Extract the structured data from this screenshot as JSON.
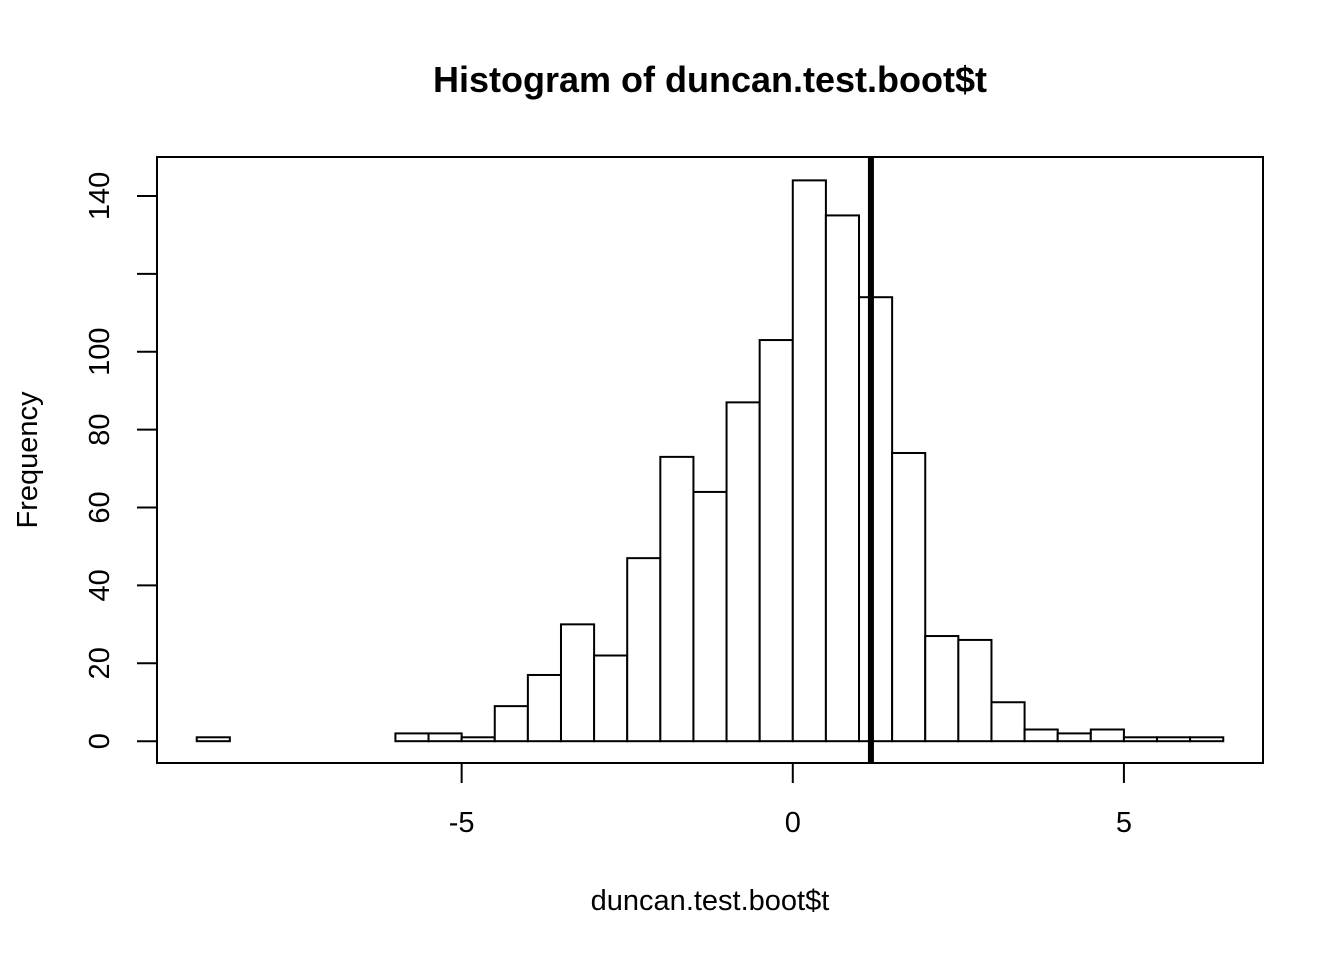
{
  "chart_data": {
    "type": "bar",
    "title": "Histogram of duncan.test.boot$t",
    "xlabel": "duncan.test.boot$t",
    "ylabel": "Frequency",
    "bin_width": 0.5,
    "bins_start": [
      -9,
      -8.5,
      -8,
      -7.5,
      -7,
      -6.5,
      -6,
      -5.5,
      -5,
      -4.5,
      -4,
      -3.5,
      -3,
      -2.5,
      -2,
      -1.5,
      -1,
      -0.5,
      0,
      0.5,
      1,
      1.5,
      2,
      2.5,
      3,
      3.5,
      4,
      4.5,
      5,
      5.5,
      6
    ],
    "values": [
      1,
      0,
      0,
      0,
      0,
      0,
      2,
      2,
      1,
      9,
      17,
      30,
      22,
      47,
      73,
      64,
      87,
      103,
      144,
      135,
      114,
      74,
      27,
      26,
      10,
      3,
      2,
      3,
      1,
      1,
      1
    ],
    "xlim": [
      -9.6,
      7.1
    ],
    "ylim": [
      -5.6,
      150
    ],
    "x_ticks": [
      -5,
      0,
      5
    ],
    "x_tick_labels": [
      "-5",
      "0",
      "5"
    ],
    "y_ticks": [
      0,
      20,
      40,
      60,
      80,
      100,
      120,
      140
    ],
    "y_tick_labels": [
      "0",
      "20",
      "40",
      "60",
      "80",
      "100",
      "",
      "140"
    ],
    "vline": 1.18,
    "grid": false,
    "bar_fill": "#ffffff",
    "stroke": "#000000"
  }
}
